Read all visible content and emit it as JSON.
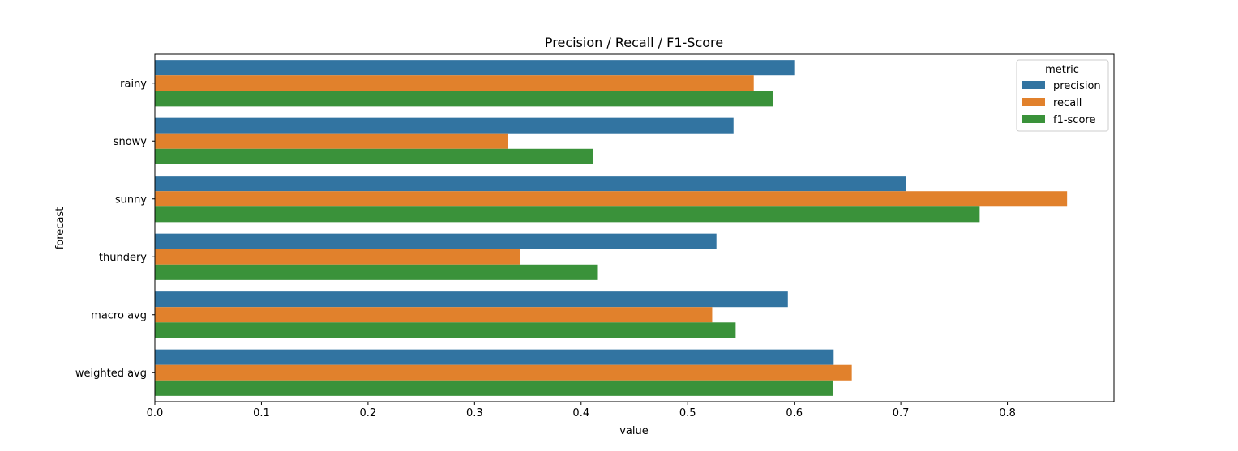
{
  "chart_data": {
    "type": "bar",
    "orientation": "horizontal",
    "title": "Precision / Recall / F1-Score",
    "xlabel": "value",
    "ylabel": "forecast",
    "xlim": [
      0.0,
      0.9
    ],
    "xticks": [
      "0.0",
      "0.1",
      "0.2",
      "0.3",
      "0.4",
      "0.5",
      "0.6",
      "0.7",
      "0.8"
    ],
    "categories": [
      "rainy",
      "snowy",
      "sunny",
      "thundery",
      "macro avg",
      "weighted avg"
    ],
    "legend": {
      "title": "metric",
      "placement": "top-right"
    },
    "grid": false,
    "series": [
      {
        "name": "precision",
        "color": "#3274a1",
        "values": [
          0.6,
          0.543,
          0.705,
          0.527,
          0.594,
          0.637
        ]
      },
      {
        "name": "recall",
        "color": "#e1812c",
        "values": [
          0.562,
          0.331,
          0.856,
          0.343,
          0.523,
          0.654
        ]
      },
      {
        "name": "f1-score",
        "color": "#3a923a",
        "values": [
          0.58,
          0.411,
          0.774,
          0.415,
          0.545,
          0.636
        ]
      }
    ]
  }
}
